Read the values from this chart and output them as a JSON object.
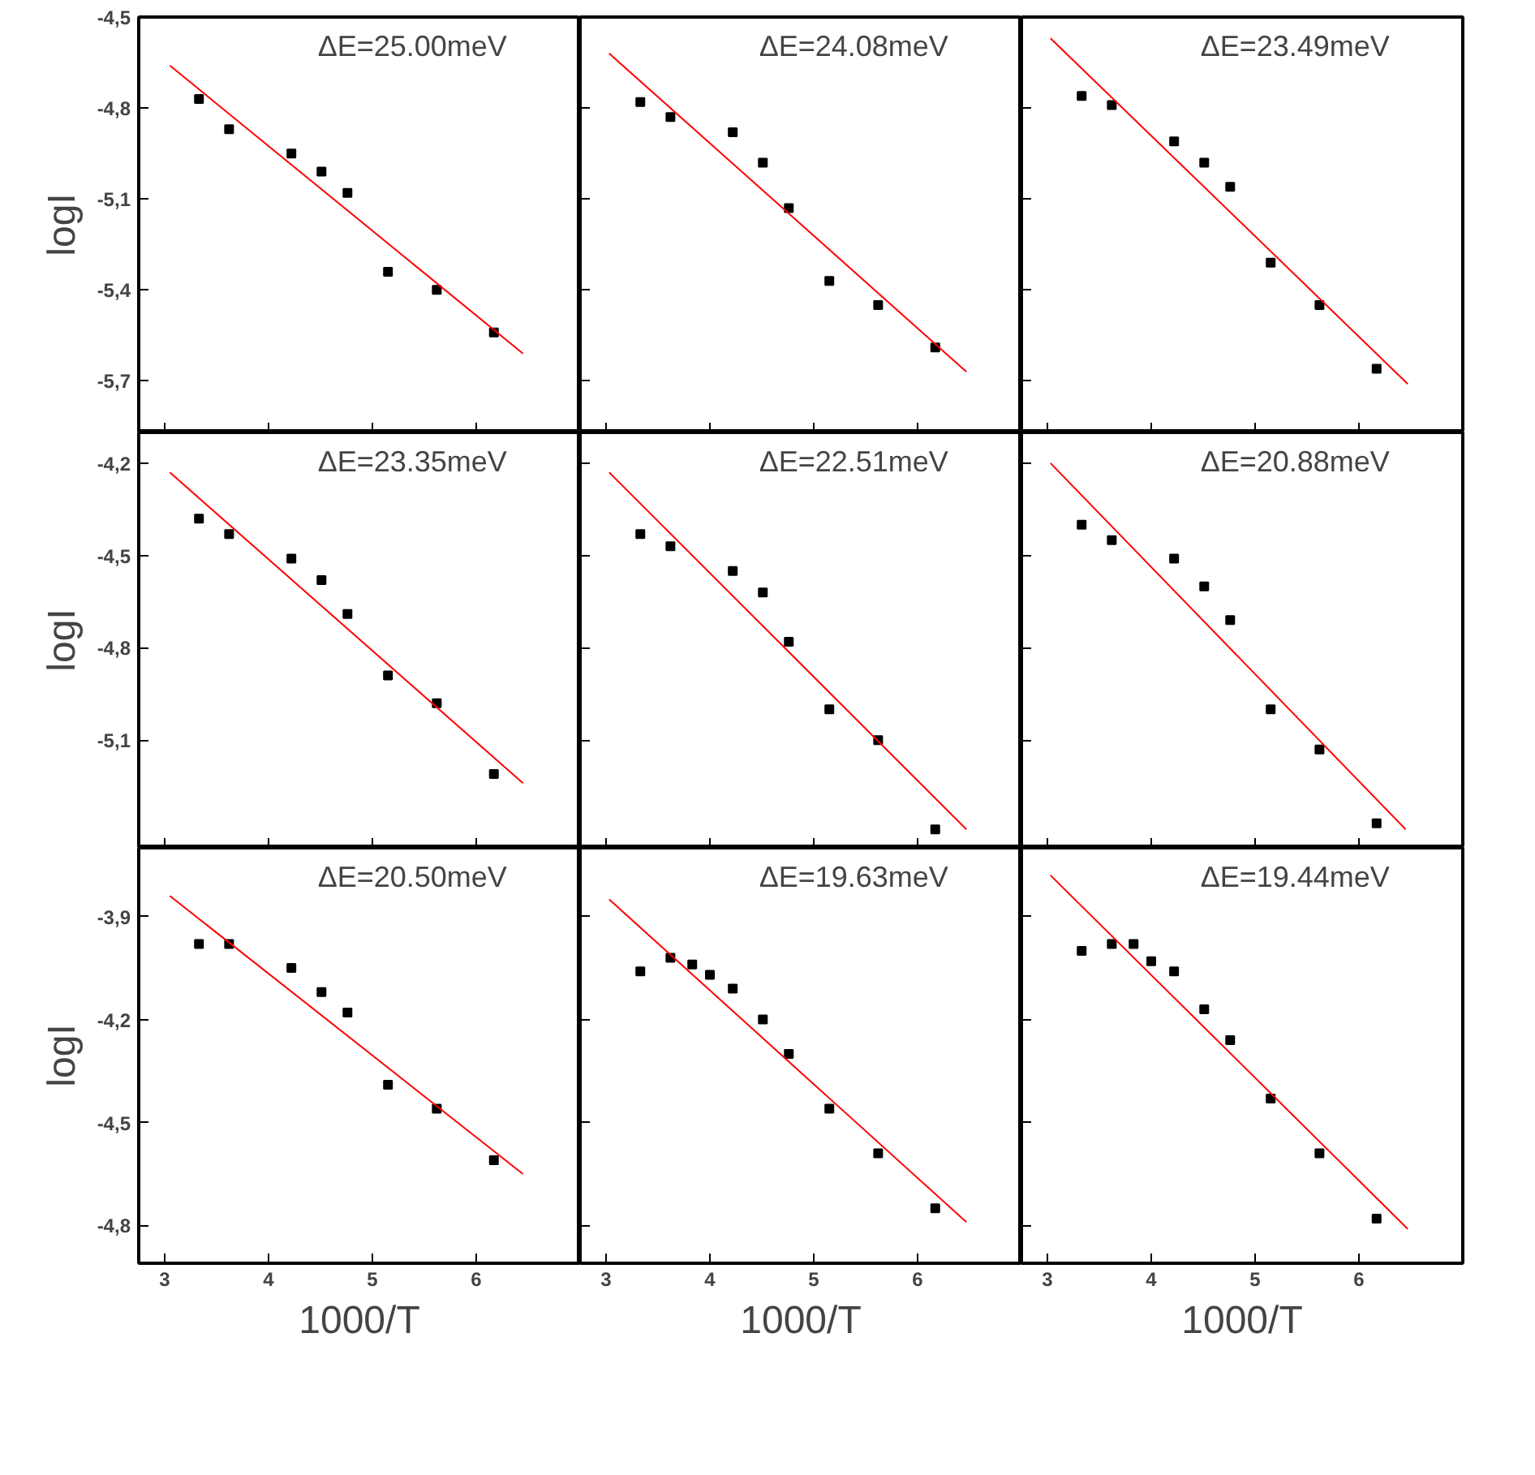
{
  "chart_data": [
    {
      "type": "scatter",
      "grid": false,
      "tick_labels": "y",
      "ylabel": "logI",
      "xlim": [
        2.75,
        7.0
      ],
      "ylim": [
        -5.87,
        -4.5
      ],
      "xticks": [
        3,
        4,
        5,
        6
      ],
      "yticks": [
        {
          "value": -4.5,
          "label": "-4,5"
        },
        {
          "value": -4.8,
          "label": "-4,8"
        },
        {
          "value": -5.1,
          "label": "-5,1"
        },
        {
          "value": -5.4,
          "label": "-5,4"
        },
        {
          "value": -5.7,
          "label": "-5,7"
        }
      ],
      "annotations": [
        "ΔE=25.00meV"
      ],
      "series": [
        {
          "marker": "square",
          "color": "#000000",
          "x": [
            3.33,
            3.62,
            4.22,
            4.51,
            4.76,
            5.15,
            5.62,
            6.17
          ],
          "values": [
            -4.77,
            -4.87,
            -4.95,
            -5.01,
            -5.08,
            -5.34,
            -5.4,
            -5.54
          ]
        },
        {
          "type": "line",
          "color": "#ff0000",
          "x": [
            3.05,
            6.45
          ],
          "values": [
            -4.66,
            -5.61
          ]
        }
      ]
    },
    {
      "type": "scatter",
      "grid": false,
      "tick_labels": false,
      "xlim": [
        2.75,
        7.0
      ],
      "ylim": [
        -5.87,
        -4.5
      ],
      "xticks": [
        3,
        4,
        5,
        6
      ],
      "yticks": [
        -4.5,
        -4.8,
        -5.1,
        -5.4,
        -5.7
      ],
      "annotations": [
        "ΔE=24.08meV"
      ],
      "series": [
        {
          "marker": "square",
          "color": "#000000",
          "x": [
            3.33,
            3.62,
            4.22,
            4.51,
            4.76,
            5.15,
            5.62,
            6.17
          ],
          "values": [
            -4.78,
            -4.83,
            -4.88,
            -4.98,
            -5.13,
            -5.37,
            -5.45,
            -5.59
          ]
        },
        {
          "type": "line",
          "color": "#ff0000",
          "x": [
            3.03,
            6.47
          ],
          "values": [
            -4.62,
            -5.67
          ]
        }
      ]
    },
    {
      "type": "scatter",
      "grid": false,
      "tick_labels": false,
      "xlim": [
        2.75,
        7.0
      ],
      "ylim": [
        -5.87,
        -4.5
      ],
      "xticks": [
        3,
        4,
        5,
        6
      ],
      "yticks": [
        -4.5,
        -4.8,
        -5.1,
        -5.4,
        -5.7
      ],
      "annotations": [
        "ΔE=23.49meV"
      ],
      "series": [
        {
          "marker": "square",
          "color": "#000000",
          "x": [
            3.33,
            3.62,
            4.22,
            4.51,
            4.76,
            5.15,
            5.62,
            6.17
          ],
          "values": [
            -4.76,
            -4.79,
            -4.91,
            -4.98,
            -5.06,
            -5.31,
            -5.45,
            -5.66
          ]
        },
        {
          "type": "line",
          "color": "#ff0000",
          "x": [
            3.03,
            6.47
          ],
          "values": [
            -4.57,
            -5.71
          ]
        }
      ]
    },
    {
      "type": "scatter",
      "grid": false,
      "tick_labels": "y",
      "ylabel": "logI",
      "xlim": [
        2.75,
        7.0
      ],
      "ylim": [
        -5.45,
        -4.1
      ],
      "xticks": [
        3,
        4,
        5,
        6
      ],
      "yticks": [
        {
          "value": -4.2,
          "label": "-4,2"
        },
        {
          "value": -4.5,
          "label": "-4,5"
        },
        {
          "value": -4.8,
          "label": "-4,8"
        },
        {
          "value": -5.1,
          "label": "-5,1"
        }
      ],
      "annotations": [
        "ΔE=23.35meV"
      ],
      "series": [
        {
          "marker": "square",
          "color": "#000000",
          "x": [
            3.33,
            3.62,
            4.22,
            4.51,
            4.76,
            5.15,
            5.62,
            6.17
          ],
          "values": [
            -4.38,
            -4.43,
            -4.51,
            -4.58,
            -4.69,
            -4.89,
            -4.98,
            -5.21
          ]
        },
        {
          "type": "line",
          "color": "#ff0000",
          "x": [
            3.05,
            6.45
          ],
          "values": [
            -4.23,
            -5.24
          ]
        }
      ]
    },
    {
      "type": "scatter",
      "grid": false,
      "tick_labels": false,
      "xlim": [
        2.75,
        7.0
      ],
      "ylim": [
        -5.45,
        -4.1
      ],
      "xticks": [
        3,
        4,
        5,
        6
      ],
      "yticks": [
        -4.2,
        -4.5,
        -4.8,
        -5.1
      ],
      "annotations": [
        "ΔE=22.51meV"
      ],
      "series": [
        {
          "marker": "square",
          "color": "#000000",
          "x": [
            3.33,
            3.62,
            4.22,
            4.51,
            4.76,
            5.15,
            5.62,
            6.17
          ],
          "values": [
            -4.43,
            -4.47,
            -4.55,
            -4.62,
            -4.78,
            -5.0,
            -5.1,
            -5.39
          ]
        },
        {
          "type": "line",
          "color": "#ff0000",
          "x": [
            3.03,
            6.47
          ],
          "values": [
            -4.23,
            -5.39
          ]
        }
      ]
    },
    {
      "type": "scatter",
      "grid": false,
      "tick_labels": false,
      "xlim": [
        2.75,
        7.0
      ],
      "ylim": [
        -5.45,
        -4.1
      ],
      "xticks": [
        3,
        4,
        5,
        6
      ],
      "yticks": [
        -4.2,
        -4.5,
        -4.8,
        -5.1
      ],
      "annotations": [
        "ΔE=20.88meV"
      ],
      "series": [
        {
          "marker": "square",
          "color": "#000000",
          "x": [
            3.33,
            3.62,
            4.22,
            4.51,
            4.76,
            5.15,
            5.62,
            6.17
          ],
          "values": [
            -4.4,
            -4.45,
            -4.51,
            -4.6,
            -4.71,
            -5.0,
            -5.13,
            -5.37
          ]
        },
        {
          "type": "line",
          "color": "#ff0000",
          "x": [
            3.03,
            6.45
          ],
          "values": [
            -4.2,
            -5.39
          ]
        }
      ]
    },
    {
      "type": "scatter",
      "grid": false,
      "ylabel": "logI",
      "xlabel": "1000/T",
      "xlim": [
        2.75,
        7.0
      ],
      "ylim": [
        -4.91,
        -3.7
      ],
      "xticks": [
        3,
        4,
        5,
        6
      ],
      "yticks": [
        {
          "value": -3.9,
          "label": "-3,9"
        },
        {
          "value": -4.2,
          "label": "-4,2"
        },
        {
          "value": -4.5,
          "label": "-4,5"
        },
        {
          "value": -4.8,
          "label": "-4,8"
        }
      ],
      "annotations": [
        "ΔE=20.50meV"
      ],
      "series": [
        {
          "marker": "square",
          "color": "#000000",
          "x": [
            3.33,
            3.62,
            4.22,
            4.51,
            4.76,
            5.15,
            5.62,
            6.17
          ],
          "values": [
            -3.98,
            -3.98,
            -4.05,
            -4.12,
            -4.18,
            -4.39,
            -4.46,
            -4.61
          ]
        },
        {
          "type": "line",
          "color": "#ff0000",
          "x": [
            3.05,
            6.45
          ],
          "values": [
            -3.84,
            -4.65
          ]
        }
      ]
    },
    {
      "type": "scatter",
      "grid": false,
      "tick_labels": "x",
      "xlabel": "1000/T",
      "xlim": [
        2.75,
        7.0
      ],
      "ylim": [
        -4.91,
        -3.7
      ],
      "xticks": [
        3,
        4,
        5,
        6
      ],
      "yticks": [
        -3.9,
        -4.2,
        -4.5,
        -4.8
      ],
      "annotations": [
        "ΔE=19.63meV"
      ],
      "series": [
        {
          "marker": "square",
          "color": "#000000",
          "x": [
            3.33,
            3.62,
            3.83,
            4.0,
            4.22,
            4.51,
            4.76,
            5.15,
            5.62,
            6.17
          ],
          "values": [
            -4.06,
            -4.02,
            -4.04,
            -4.07,
            -4.11,
            -4.2,
            -4.3,
            -4.46,
            -4.59,
            -4.75
          ]
        },
        {
          "type": "line",
          "color": "#ff0000",
          "x": [
            3.03,
            6.47
          ],
          "values": [
            -3.85,
            -4.79
          ]
        }
      ]
    },
    {
      "type": "scatter",
      "grid": false,
      "tick_labels": "x",
      "xlabel": "1000/T",
      "xlim": [
        2.75,
        7.0
      ],
      "ylim": [
        -4.91,
        -3.7
      ],
      "xticks": [
        3,
        4,
        5,
        6
      ],
      "yticks": [
        -3.9,
        -4.2,
        -4.5,
        -4.8
      ],
      "annotations": [
        "ΔE=19.44meV"
      ],
      "series": [
        {
          "marker": "square",
          "color": "#000000",
          "x": [
            3.33,
            3.62,
            3.83,
            4.0,
            4.22,
            4.51,
            4.76,
            5.15,
            5.62,
            6.17
          ],
          "values": [
            -4.0,
            -3.98,
            -3.98,
            -4.03,
            -4.06,
            -4.17,
            -4.26,
            -4.43,
            -4.59,
            -4.78
          ]
        },
        {
          "type": "line",
          "color": "#ff0000",
          "x": [
            3.03,
            6.47
          ],
          "values": [
            -3.78,
            -4.81
          ]
        }
      ]
    }
  ]
}
